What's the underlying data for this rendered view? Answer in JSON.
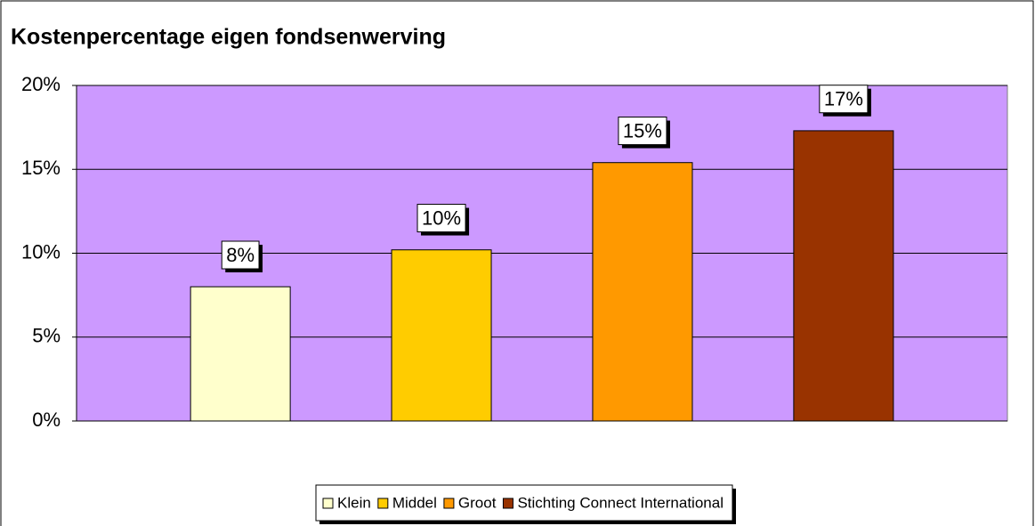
{
  "chart_data": {
    "type": "bar",
    "title": "Kostenpercentage eigen fondsenwerving",
    "categories": [
      null
    ],
    "series": [
      {
        "name": "Klein",
        "color": "#ffffcc",
        "values": [
          8
        ],
        "value_labels": [
          "8%"
        ]
      },
      {
        "name": "Middel",
        "color": "#ffcc00",
        "values": [
          10.2
        ],
        "value_labels": [
          "10%"
        ]
      },
      {
        "name": "Groot",
        "color": "#ff9900",
        "values": [
          15.4
        ],
        "value_labels": [
          "15%"
        ]
      },
      {
        "name": "Stichting Connect International",
        "color": "#993300",
        "values": [
          17.3
        ],
        "value_labels": [
          "17%"
        ]
      }
    ],
    "ylim": [
      0,
      20
    ],
    "yticks": [
      {
        "value": 0,
        "label": "0%"
      },
      {
        "value": 5,
        "label": "5%"
      },
      {
        "value": 10,
        "label": "10%"
      },
      {
        "value": 15,
        "label": "15%"
      },
      {
        "value": 20,
        "label": "20%"
      }
    ],
    "grid": true,
    "plot_color": "#cc99ff",
    "legend": "bottom"
  }
}
